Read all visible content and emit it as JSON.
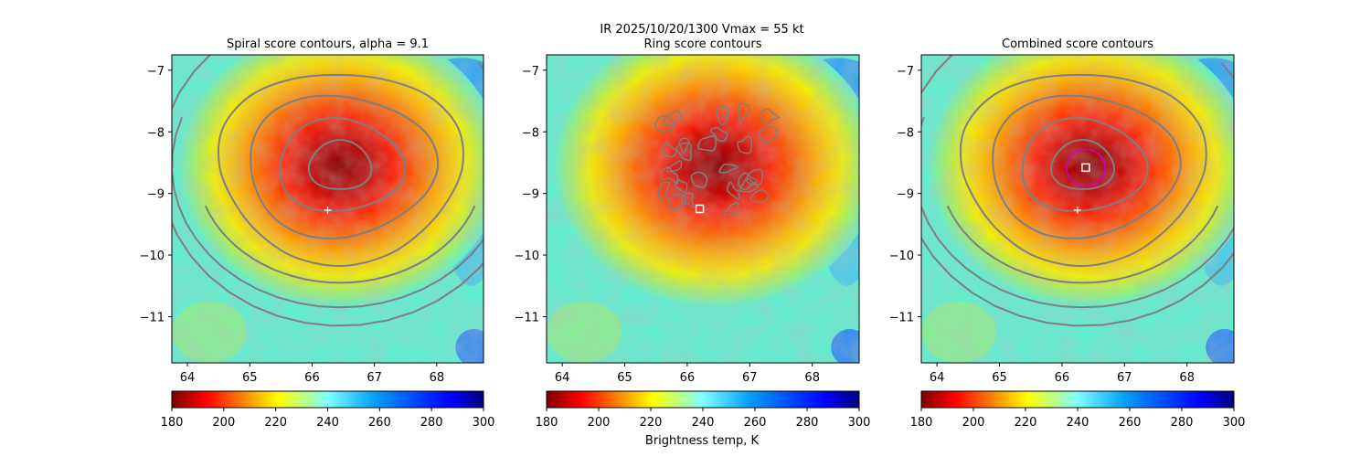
{
  "figure": {
    "suptitle_line1": "IR  2025/10/20/1300    Vmax = 55 kt",
    "colorbar_label": "Brightness temp, K"
  },
  "colors": {
    "contour": "#7f7f7f",
    "center_marker": "#ffffff",
    "combined_ring": "#cc00cc"
  },
  "colormap": "jet",
  "chart_data": [
    {
      "type": "heatmap",
      "title": "Spiral score contours, alpha =  9.1",
      "xlim": [
        63.75,
        68.75
      ],
      "ylim": [
        -11.75,
        -6.75
      ],
      "xticks": [
        64,
        65,
        66,
        67,
        68
      ],
      "yticks": [
        -7,
        -8,
        -9,
        -10,
        -11
      ],
      "xtick_labels": [
        "64",
        "65",
        "66",
        "67",
        "68"
      ],
      "ytick_labels": [
        "−7",
        "−8",
        "−9",
        "−10",
        "−11"
      ],
      "colorbar": {
        "min": 180,
        "max": 300,
        "ticks": [
          180,
          200,
          220,
          240,
          260,
          280,
          300
        ]
      },
      "storm_center": {
        "lon": 66.45,
        "lat": -8.55
      },
      "contours": "spiral",
      "markers": [
        {
          "symbol": "plus",
          "lon": 66.25,
          "lat": -9.27
        }
      ]
    },
    {
      "type": "heatmap",
      "title": "Ring score contours",
      "xlim": [
        63.75,
        68.75
      ],
      "ylim": [
        -11.75,
        -6.75
      ],
      "xticks": [
        64,
        65,
        66,
        67,
        68
      ],
      "yticks": [
        -7,
        -8,
        -9,
        -10,
        -11
      ],
      "xtick_labels": [
        "64",
        "65",
        "66",
        "67",
        "68"
      ],
      "ytick_labels": [
        "−7",
        "−8",
        "−9",
        "−10",
        "−11"
      ],
      "colorbar": {
        "min": 180,
        "max": 300,
        "ticks": [
          180,
          200,
          220,
          240,
          260,
          280,
          300
        ]
      },
      "storm_center": {
        "lon": 66.45,
        "lat": -8.55
      },
      "contours": "ring",
      "markers": [
        {
          "symbol": "square",
          "lon": 66.2,
          "lat": -9.25
        }
      ]
    },
    {
      "type": "heatmap",
      "title": "Combined score contours",
      "xlim": [
        63.75,
        68.75
      ],
      "ylim": [
        -11.75,
        -6.75
      ],
      "xticks": [
        64,
        65,
        66,
        67,
        68
      ],
      "yticks": [
        -7,
        -8,
        -9,
        -10,
        -11
      ],
      "xtick_labels": [
        "64",
        "65",
        "66",
        "67",
        "68"
      ],
      "ytick_labels": [
        "−7",
        "−8",
        "−9",
        "−10",
        "−11"
      ],
      "colorbar": {
        "min": 180,
        "max": 300,
        "ticks": [
          180,
          200,
          220,
          240,
          260,
          280,
          300
        ]
      },
      "storm_center": {
        "lon": 66.45,
        "lat": -8.55
      },
      "contours": "combined",
      "markers": [
        {
          "symbol": "plus",
          "lon": 66.25,
          "lat": -9.27
        },
        {
          "symbol": "square",
          "lon": 66.38,
          "lat": -8.58
        }
      ]
    }
  ]
}
